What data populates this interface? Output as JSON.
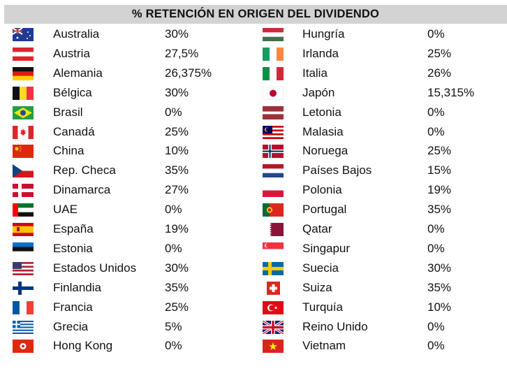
{
  "title": "% RETENCIÓN EN ORIGEN DEL DIVIDENDO",
  "left": [
    {
      "country": "Australia",
      "rate": "30%",
      "flag": "flag-au"
    },
    {
      "country": "Austria",
      "rate": "27,5%",
      "flag": "flag-at"
    },
    {
      "country": "Alemania",
      "rate": "26,375%",
      "flag": "flag-de"
    },
    {
      "country": "Bélgica",
      "rate": "30%",
      "flag": "flag-be"
    },
    {
      "country": "Brasil",
      "rate": "0%",
      "flag": "flag-br"
    },
    {
      "country": "Canadá",
      "rate": "25%",
      "flag": "flag-ca"
    },
    {
      "country": "China",
      "rate": "10%",
      "flag": "flag-cn"
    },
    {
      "country": "Rep. Checa",
      "rate": "35%",
      "flag": "flag-cz"
    },
    {
      "country": "Dinamarca",
      "rate": "27%",
      "flag": "flag-dk"
    },
    {
      "country": "UAE",
      "rate": "0%",
      "flag": "flag-ae"
    },
    {
      "country": "España",
      "rate": "19%",
      "flag": "flag-es"
    },
    {
      "country": "Estonia",
      "rate": "0%",
      "flag": "flag-ee"
    },
    {
      "country": "Estados Unidos",
      "rate": "30%",
      "flag": "flag-us"
    },
    {
      "country": "Finlandia",
      "rate": "35%",
      "flag": "flag-fi"
    },
    {
      "country": "Francia",
      "rate": "25%",
      "flag": "flag-fr"
    },
    {
      "country": "Grecia",
      "rate": "5%",
      "flag": "flag-gr"
    },
    {
      "country": "Hong Kong",
      "rate": "0%",
      "flag": "flag-hk"
    }
  ],
  "right": [
    {
      "country": "Hungría",
      "rate": "0%",
      "flag": "flag-hu"
    },
    {
      "country": "Irlanda",
      "rate": "25%",
      "flag": "flag-ie"
    },
    {
      "country": "Italia",
      "rate": "26%",
      "flag": "flag-it"
    },
    {
      "country": "Japón",
      "rate": "15,315%",
      "flag": "flag-jp"
    },
    {
      "country": "Letonia",
      "rate": "0%",
      "flag": "flag-lv"
    },
    {
      "country": "Malasia",
      "rate": "0%",
      "flag": "flag-my"
    },
    {
      "country": "Noruega",
      "rate": "25%",
      "flag": "flag-no"
    },
    {
      "country": "Países Bajos",
      "rate": "15%",
      "flag": "flag-nl"
    },
    {
      "country": "Polonia",
      "rate": "19%",
      "flag": "flag-pl"
    },
    {
      "country": "Portugal",
      "rate": "35%",
      "flag": "flag-pt"
    },
    {
      "country": "Qatar",
      "rate": "0%",
      "flag": "flag-qa"
    },
    {
      "country": "Singapur",
      "rate": "0%",
      "flag": "flag-sg"
    },
    {
      "country": "Suecia",
      "rate": "30%",
      "flag": "flag-se"
    },
    {
      "country": "Suiza",
      "rate": "35%",
      "flag": "flag-ch"
    },
    {
      "country": "Turquía",
      "rate": "10%",
      "flag": "flag-tr"
    },
    {
      "country": "Reino Unido",
      "rate": "0%",
      "flag": "flag-gb"
    },
    {
      "country": "Vietnam",
      "rate": "0%",
      "flag": "flag-vn"
    }
  ]
}
